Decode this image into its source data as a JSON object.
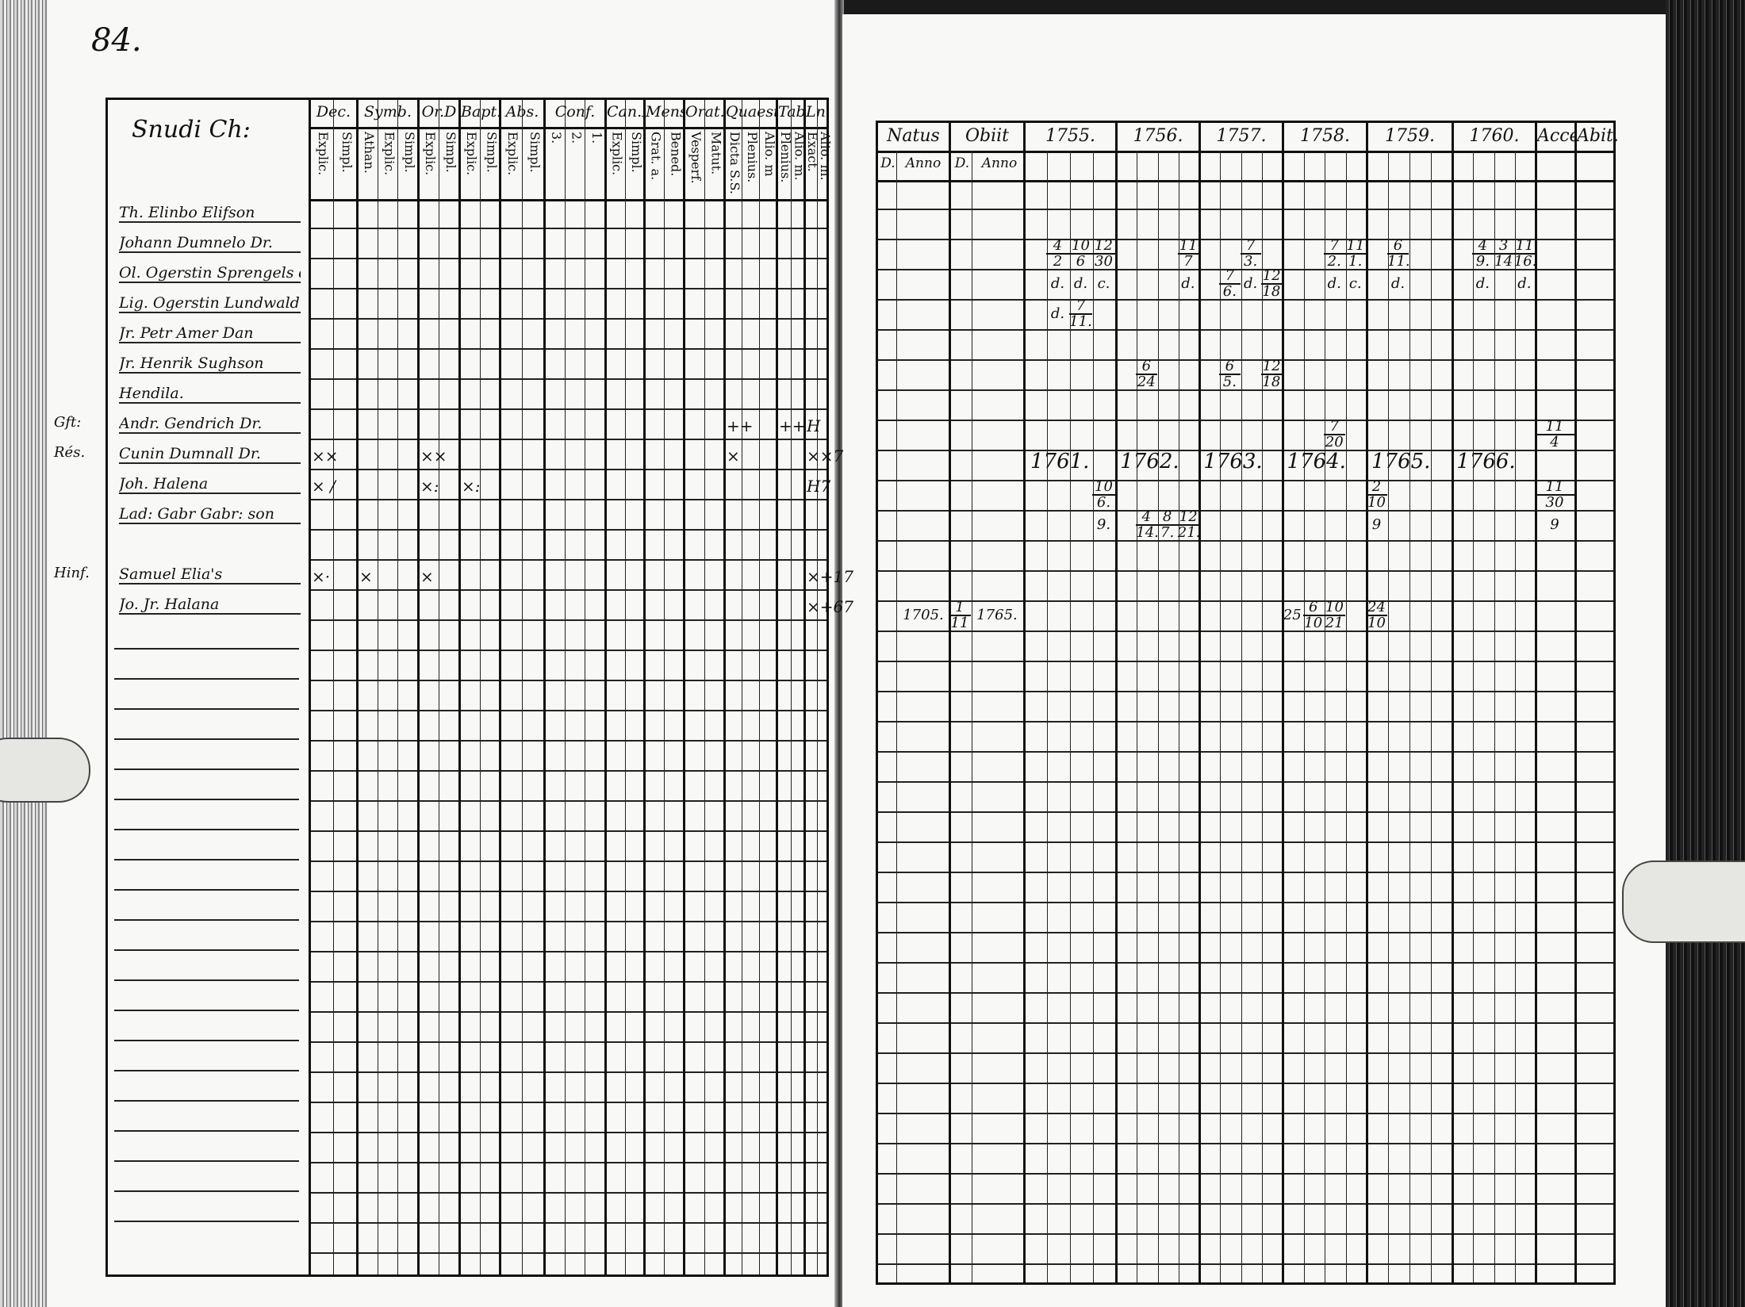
{
  "page_number": "84.",
  "left_table": {
    "name_header": "Snudi Ch:",
    "columns": [
      {
        "label": "Dec.",
        "subs": [
          "Explic.",
          "Simpl."
        ]
      },
      {
        "label": "Symb.",
        "subs": [
          "Athan.",
          "Explic.",
          "Simpl."
        ]
      },
      {
        "label": "Or.D",
        "subs": [
          "Explic.",
          "Simpl."
        ]
      },
      {
        "label": "Bapt.",
        "subs": [
          "Explic.",
          "Simpl."
        ]
      },
      {
        "label": "Abs.",
        "subs": [
          "Explic.",
          "Simpl."
        ]
      },
      {
        "label": "Conf.",
        "subs": [
          "3.",
          "2.",
          "1."
        ]
      },
      {
        "label": "Can.D",
        "subs": [
          "Explic.",
          "Simpl."
        ]
      },
      {
        "label": "Mens.",
        "subs": [
          "Grat. a.",
          "Bened."
        ]
      },
      {
        "label": "Orat.",
        "subs": [
          "Vesperf.",
          "Matut."
        ]
      },
      {
        "label": "Quaest.",
        "subs": [
          "Dicta S.S.",
          "Plenius.",
          "Alio. m"
        ]
      },
      {
        "label": "Tabl.",
        "subs": [
          "Plenius.",
          "Alio. m."
        ]
      },
      {
        "label": "Ln.",
        "subs": [
          "Exact.",
          "Alio. m."
        ]
      }
    ],
    "rows": [
      {
        "name": "Th. Elinbo Elifson",
        "margin": "",
        "marks": []
      },
      {
        "name": "Johann Dumnelo Dr.",
        "margin": "",
        "marks": []
      },
      {
        "name": "Ol. Ogerstin Sprengels dotter",
        "margin": "",
        "marks": []
      },
      {
        "name": "Lig. Ogerstin Lundwald",
        "margin": "",
        "marks": []
      },
      {
        "name": "Jr. Petr Amer Dan",
        "margin": "",
        "marks": []
      },
      {
        "name": "Jr. Henrik Sughson",
        "margin": "",
        "marks": []
      },
      {
        "name": "Hendila.",
        "margin": "",
        "marks": []
      },
      {
        "name": "Andr. Gendrich Dr.",
        "margin": "Gft:",
        "marks": [
          {
            "col": 9,
            "text": "++"
          },
          {
            "col": 10,
            "text": "++"
          },
          {
            "col": 11,
            "text": "H"
          }
        ]
      },
      {
        "name": "Cunin Dumnall Dr.",
        "margin": "Rés.",
        "marks": [
          {
            "col": 0,
            "text": "××"
          },
          {
            "col": 2,
            "text": "××"
          },
          {
            "col": 9,
            "text": "×"
          },
          {
            "col": 11,
            "text": "××7"
          }
        ]
      },
      {
        "name": "Joh. Halena",
        "margin": "",
        "marks": [
          {
            "col": 0,
            "text": "× /"
          },
          {
            "col": 2,
            "text": "×:"
          },
          {
            "col": 3,
            "text": "×:"
          },
          {
            "col": 11,
            "text": "H7"
          }
        ]
      },
      {
        "name": "Lad: Gabr Gabr: son",
        "margin": "",
        "marks": []
      },
      {
        "name": "",
        "margin": "",
        "marks": []
      },
      {
        "name": "Samuel Elia's",
        "margin": "Hinf.",
        "marks": [
          {
            "col": 0,
            "text": "×·"
          },
          {
            "col": 1,
            "text": "×"
          },
          {
            "col": 2,
            "text": "×"
          },
          {
            "col": 11,
            "text": "×+17"
          }
        ]
      },
      {
        "name": "Jo. Jr. Halana",
        "margin": "",
        "marks": [
          {
            "col": 11,
            "text": "×+67"
          }
        ]
      }
    ]
  },
  "right_table": {
    "groups": [
      {
        "label": "Natus",
        "subs": [
          "D.",
          "Anno"
        ]
      },
      {
        "label": "Obiit",
        "subs": [
          "D.",
          "Anno"
        ]
      },
      {
        "label": "1755.",
        "subs": [
          "",
          "",
          "",
          ""
        ]
      },
      {
        "label": "1756.",
        "subs": [
          "",
          "",
          "",
          ""
        ]
      },
      {
        "label": "1757.",
        "subs": [
          "",
          "",
          "",
          ""
        ]
      },
      {
        "label": "1758.",
        "subs": [
          "",
          "",
          "",
          ""
        ]
      },
      {
        "label": "1759.",
        "subs": [
          "",
          "",
          "",
          ""
        ]
      },
      {
        "label": "1760.",
        "subs": [
          "",
          "",
          "",
          ""
        ]
      },
      {
        "label": "Acces.",
        "subs": [
          ""
        ]
      },
      {
        "label": "Abit.",
        "subs": [
          ""
        ]
      }
    ],
    "entries": [
      {
        "g": 2,
        "s": 1,
        "r": 2,
        "text": "4/2"
      },
      {
        "g": 2,
        "s": 2,
        "r": 2,
        "text": "10/6"
      },
      {
        "g": 2,
        "s": 3,
        "r": 2,
        "text": "12/30"
      },
      {
        "g": 2,
        "s": 1,
        "r": 3,
        "text": "d."
      },
      {
        "g": 2,
        "s": 2,
        "r": 3,
        "text": "d."
      },
      {
        "g": 2,
        "s": 3,
        "r": 3,
        "text": "c."
      },
      {
        "g": 2,
        "s": 1,
        "r": 4,
        "text": "d."
      },
      {
        "g": 2,
        "s": 2,
        "r": 4,
        "text": "7/11."
      },
      {
        "g": 3,
        "s": 3,
        "r": 2,
        "text": "11/7"
      },
      {
        "g": 3,
        "s": 3,
        "r": 3,
        "text": "d."
      },
      {
        "g": 3,
        "s": 1,
        "r": 6,
        "text": "6/24"
      },
      {
        "g": 4,
        "s": 2,
        "r": 2,
        "text": "7/3."
      },
      {
        "g": 4,
        "s": 1,
        "r": 3,
        "text": "7/6."
      },
      {
        "g": 4,
        "s": 2,
        "r": 3,
        "text": "d."
      },
      {
        "g": 4,
        "s": 3,
        "r": 3,
        "text": "12/18"
      },
      {
        "g": 4,
        "s": 1,
        "r": 6,
        "text": "6/5."
      },
      {
        "g": 4,
        "s": 3,
        "r": 6,
        "text": "12/18"
      },
      {
        "g": 5,
        "s": 2,
        "r": 2,
        "text": "7/2."
      },
      {
        "g": 5,
        "s": 3,
        "r": 2,
        "text": "11/1."
      },
      {
        "g": 5,
        "s": 2,
        "r": 3,
        "text": "d."
      },
      {
        "g": 5,
        "s": 3,
        "r": 3,
        "text": "c."
      },
      {
        "g": 5,
        "s": 2,
        "r": 8,
        "text": "7/20"
      },
      {
        "g": 6,
        "s": 1,
        "r": 2,
        "text": "6/11."
      },
      {
        "g": 6,
        "s": 1,
        "r": 3,
        "text": "d."
      },
      {
        "g": 7,
        "s": 1,
        "r": 2,
        "text": "4/9."
      },
      {
        "g": 7,
        "s": 2,
        "r": 2,
        "text": "3/14"
      },
      {
        "g": 7,
        "s": 3,
        "r": 2,
        "text": "11/16."
      },
      {
        "g": 7,
        "s": 1,
        "r": 3,
        "text": "d."
      },
      {
        "g": 7,
        "s": 3,
        "r": 3,
        "text": "d."
      },
      {
        "g": 8,
        "s": 0,
        "r": 8,
        "text": "11/4"
      },
      {
        "g": 2,
        "s": 1,
        "r": 9,
        "text": "1761.",
        "year": true
      },
      {
        "g": 3,
        "s": 1,
        "r": 9,
        "text": "1762.",
        "year": true
      },
      {
        "g": 4,
        "s": 1,
        "r": 9,
        "text": "1763.",
        "year": true
      },
      {
        "g": 5,
        "s": 1,
        "r": 9,
        "text": "1764.",
        "year": true
      },
      {
        "g": 6,
        "s": 1,
        "r": 9,
        "text": "1765.",
        "year": true
      },
      {
        "g": 7,
        "s": 1,
        "r": 9,
        "text": "1766.",
        "year": true
      },
      {
        "g": 2,
        "s": 3,
        "r": 10,
        "text": "10/6."
      },
      {
        "g": 2,
        "s": 3,
        "r": 11,
        "text": "9."
      },
      {
        "g": 3,
        "s": 1,
        "r": 11,
        "text": "4/14."
      },
      {
        "g": 3,
        "s": 2,
        "r": 11,
        "text": "8/7."
      },
      {
        "g": 3,
        "s": 3,
        "r": 11,
        "text": "12/21."
      },
      {
        "g": 6,
        "s": 0,
        "r": 10,
        "text": "2/10"
      },
      {
        "g": 6,
        "s": 0,
        "r": 11,
        "text": "9"
      },
      {
        "g": 8,
        "s": 0,
        "r": 10,
        "text": "11/30"
      },
      {
        "g": 8,
        "s": 0,
        "r": 11,
        "text": "9"
      },
      {
        "g": 0,
        "s": 1,
        "r": 14,
        "text": "1705."
      },
      {
        "g": 1,
        "s": 0,
        "r": 14,
        "text": "1/11"
      },
      {
        "g": 1,
        "s": 1,
        "r": 14,
        "text": "1765."
      },
      {
        "g": 5,
        "s": 0,
        "r": 14,
        "text": "25"
      },
      {
        "g": 5,
        "s": 1,
        "r": 14,
        "text": "6/10"
      },
      {
        "g": 5,
        "s": 2,
        "r": 14,
        "text": "10/21"
      },
      {
        "g": 6,
        "s": 0,
        "r": 14,
        "text": "24/10"
      }
    ]
  }
}
